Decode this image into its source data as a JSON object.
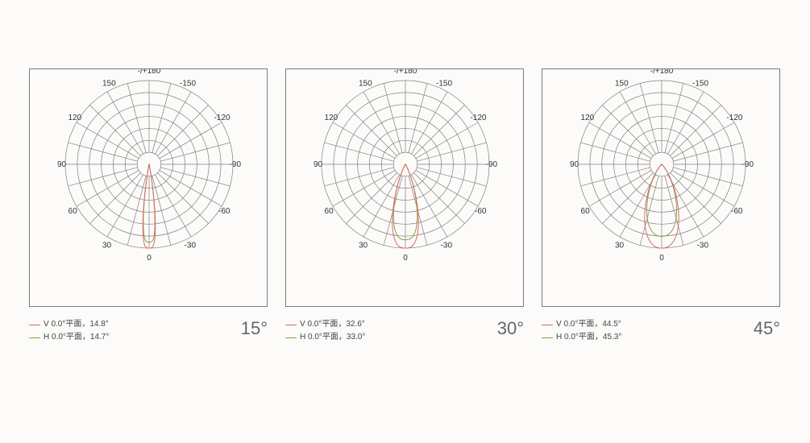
{
  "background_color": "#fcfbf9",
  "box_border_color": "#7a7a7a",
  "grid_color": "#808080",
  "colors": {
    "v": "#d86a6a",
    "h": "#8d9a3f"
  },
  "axis_labels": [
    {
      "deg": 180,
      "text": "-/+180"
    },
    {
      "deg": 150,
      "text": "150"
    },
    {
      "deg": 120,
      "text": "120"
    },
    {
      "deg": 90,
      "text": "90"
    },
    {
      "deg": 60,
      "text": "60"
    },
    {
      "deg": 30,
      "text": "30"
    },
    {
      "deg": 0,
      "text": "0"
    },
    {
      "deg": -30,
      "text": "-30"
    },
    {
      "deg": -60,
      "text": "-60"
    },
    {
      "deg": -90,
      "text": "-90"
    },
    {
      "deg": -120,
      "text": "-120"
    },
    {
      "deg": -150,
      "text": "-150"
    }
  ],
  "rings": 7,
  "spoke_step_deg": 15,
  "panels": [
    {
      "title": "15°",
      "legend": {
        "v": "V 0.0°平面，14.8°",
        "h": "H 0.0°平面，14.7°"
      },
      "beam": {
        "v_half_deg": 7.4,
        "h_half_deg": 7.35,
        "v_scale": 1.0,
        "h_scale": 0.93,
        "exp_v": 3.5,
        "exp_h": 3.5
      }
    },
    {
      "title": "30°",
      "legend": {
        "v": "V 0.0°平面，32.6°",
        "h": "H 0.0°平面，33.0°"
      },
      "beam": {
        "v_half_deg": 16.3,
        "h_half_deg": 16.5,
        "v_scale": 1.0,
        "h_scale": 0.9,
        "exp_v": 2.8,
        "exp_h": 2.8
      }
    },
    {
      "title": "45°",
      "legend": {
        "v": "V 0.0°平面，44.5°",
        "h": "H 0.0°平面，45.3°"
      },
      "beam": {
        "v_half_deg": 22.25,
        "h_half_deg": 22.65,
        "v_scale": 1.0,
        "h_scale": 0.86,
        "exp_v": 2.4,
        "exp_h": 2.4
      }
    }
  ]
}
